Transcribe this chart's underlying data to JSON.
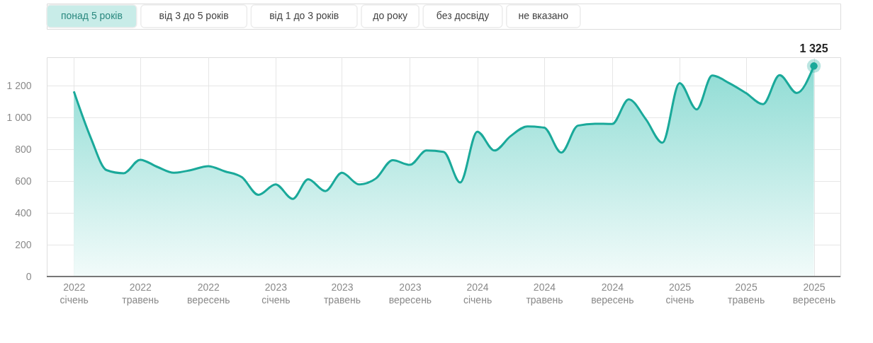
{
  "chart_data": {
    "type": "area",
    "annotations": [
      "понад 5 років",
      "від 3 до 5 років",
      "від 1 до 3 років",
      "до року",
      "без досвіду",
      "не вказано"
    ],
    "x": [
      "2022-01",
      "2022-02",
      "2022-03",
      "2022-04",
      "2022-05",
      "2022-06",
      "2022-07",
      "2022-08",
      "2022-09",
      "2022-10",
      "2022-11",
      "2022-12",
      "2023-01",
      "2023-02",
      "2023-03",
      "2023-04",
      "2023-05",
      "2023-06",
      "2023-07",
      "2023-08",
      "2023-09",
      "2023-10",
      "2023-11",
      "2023-12",
      "2024-01",
      "2024-02",
      "2024-03",
      "2024-04",
      "2024-05",
      "2024-06",
      "2024-07",
      "2024-08",
      "2024-09",
      "2024-10",
      "2024-11",
      "2024-12",
      "2025-01",
      "2025-02",
      "2025-03",
      "2025-04",
      "2025-05",
      "2025-06",
      "2025-07",
      "2025-08",
      "2025-09"
    ],
    "series": [
      {
        "color": "#1aa99a",
        "values": [
          1165,
          870,
          670,
          650,
          735,
          690,
          653,
          670,
          695,
          662,
          625,
          514,
          580,
          489,
          612,
          538,
          653,
          580,
          616,
          732,
          703,
          793,
          785,
          592,
          912,
          793,
          883,
          945,
          937,
          780,
          950,
          962,
          960,
          1115,
          990,
          842,
          1218,
          1052,
          1265,
          1217,
          1155,
          1085,
          1268,
          1155,
          1325
        ],
        "value_labels": [
          null,
          null,
          null,
          null,
          null,
          null,
          null,
          null,
          null,
          null,
          null,
          null,
          null,
          null,
          null,
          null,
          null,
          null,
          null,
          null,
          null,
          null,
          null,
          null,
          null,
          null,
          null,
          null,
          null,
          null,
          null,
          null,
          null,
          null,
          null,
          null,
          null,
          null,
          null,
          null,
          null,
          null,
          null,
          null,
          "1 325"
        ]
      }
    ],
    "xlim": [
      "2021-11-13",
      "2025-10-19"
    ],
    "xticks": [
      {
        "value": "2022-01",
        "label": "2022\nсічень"
      },
      {
        "value": "2022-05",
        "label": "2022\nтравень"
      },
      {
        "value": "2022-09",
        "label": "2022\nвересень"
      },
      {
        "value": "2023-01",
        "label": "2023\nсічень"
      },
      {
        "value": "2023-05",
        "label": "2023\nтравень"
      },
      {
        "value": "2023-09",
        "label": "2023\nвересень"
      },
      {
        "value": "2024-01",
        "label": "2024\nсічень"
      },
      {
        "value": "2024-05",
        "label": "2024\nтравень"
      },
      {
        "value": "2024-09",
        "label": "2024\nвересень"
      },
      {
        "value": "2025-01",
        "label": "2025\nсічень"
      },
      {
        "value": "2025-05",
        "label": "2025\nтравень"
      },
      {
        "value": "2025-09",
        "label": "2025\nвересень"
      }
    ],
    "ylim": [
      0,
      1380
    ],
    "yticks": [
      0,
      200,
      400,
      600,
      800,
      {
        "value": 1000,
        "label": "1 000"
      },
      {
        "value": 1200,
        "label": "1 200"
      }
    ],
    "grid": true
  }
}
